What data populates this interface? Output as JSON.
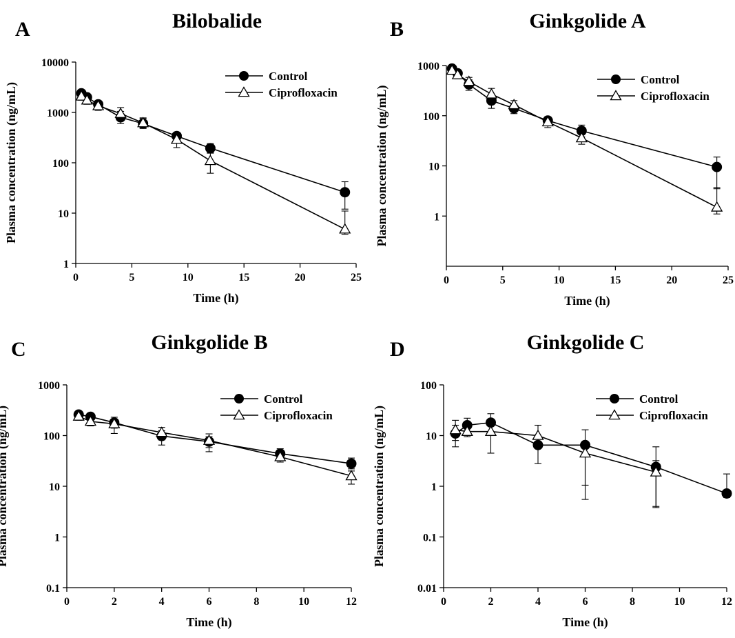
{
  "chart_data": [
    {
      "type": "scatter",
      "panel_label": "A",
      "title": "Bilobalide",
      "xlabel": "Time (h)",
      "ylabel": "Plasma concentration (ng/mL)",
      "xlim": [
        0,
        25
      ],
      "ylim": [
        1,
        10000
      ],
      "yscale": "log",
      "grid": false,
      "legend_position": "top-right",
      "x_ticks": [
        0,
        5,
        10,
        15,
        20,
        25
      ],
      "x_tick_labels": [
        "0",
        "5",
        "10",
        "15",
        "20",
        "25"
      ],
      "y_ticks": [
        1,
        10,
        100,
        1000,
        10000
      ],
      "y_tick_labels": [
        "1",
        "10",
        "100",
        "1000",
        "10000"
      ],
      "series": [
        {
          "name": "Control",
          "marker": "filled-circle",
          "x": [
            0.5,
            1,
            2,
            4,
            6,
            9,
            12,
            24
          ],
          "y": [
            2400,
            2000,
            1450,
            800,
            600,
            340,
            195,
            26
          ],
          "error_upper": [
            2800,
            2300,
            1700,
            1050,
            750,
            400,
            240,
            42
          ],
          "error_lower": [
            2100,
            1700,
            1200,
            600,
            480,
            280,
            155,
            12
          ]
        },
        {
          "name": "Ciprofloxacin",
          "marker": "open-triangle",
          "x": [
            0.5,
            1,
            2,
            4,
            6,
            9,
            12,
            24
          ],
          "y": [
            2100,
            1750,
            1350,
            950,
            620,
            290,
            110,
            4.8
          ],
          "error_upper": [
            2500,
            2100,
            1650,
            1250,
            780,
            360,
            160,
            11
          ],
          "error_lower": [
            1750,
            1450,
            1100,
            720,
            500,
            200,
            62,
            3.8
          ]
        }
      ]
    },
    {
      "type": "scatter",
      "panel_label": "B",
      "title": "Ginkgolide A",
      "xlabel": "Time (h)",
      "ylabel": "Plasma concentration (ng/mL)",
      "xlim": [
        0,
        25
      ],
      "ylim": [
        0.1,
        1000
      ],
      "yscale": "log",
      "grid": false,
      "legend_position": "top-right",
      "x_ticks": [
        0,
        5,
        10,
        15,
        20,
        25
      ],
      "x_tick_labels": [
        "0",
        "5",
        "10",
        "15",
        "20",
        "25"
      ],
      "y_ticks": [
        1,
        10,
        100,
        1000
      ],
      "y_tick_labels": [
        "1",
        "10",
        "100",
        "1000"
      ],
      "series": [
        {
          "name": "Control",
          "marker": "filled-circle",
          "x": [
            0.5,
            1,
            2,
            4,
            6,
            9,
            12,
            24
          ],
          "y": [
            870,
            700,
            420,
            200,
            140,
            80,
            50,
            9.5
          ],
          "error_upper": [
            1000,
            820,
            520,
            260,
            170,
            95,
            65,
            15
          ],
          "error_lower": [
            760,
            600,
            320,
            140,
            110,
            65,
            38,
            3.5
          ]
        },
        {
          "name": "Ciprofloxacin",
          "marker": "open-triangle",
          "x": [
            0.5,
            1,
            2,
            4,
            6,
            9,
            12,
            24
          ],
          "y": [
            800,
            650,
            480,
            270,
            165,
            75,
            36,
            1.5
          ],
          "error_upper": [
            920,
            760,
            580,
            350,
            200,
            90,
            46,
            3.7
          ],
          "error_lower": [
            680,
            540,
            380,
            200,
            130,
            58,
            27,
            1.1
          ]
        }
      ]
    },
    {
      "type": "scatter",
      "panel_label": "C",
      "title": "Ginkgolide B",
      "xlabel": "Time (h)",
      "ylabel": "Plasma concentration (ng/mL)",
      "xlim": [
        0,
        12
      ],
      "ylim": [
        0.1,
        1000
      ],
      "yscale": "log",
      "grid": false,
      "legend_position": "top-right",
      "x_ticks": [
        0,
        2,
        4,
        6,
        8,
        10,
        12
      ],
      "x_tick_labels": [
        "0",
        "2",
        "4",
        "6",
        "8",
        "10",
        "12"
      ],
      "y_ticks": [
        0.1,
        1,
        10,
        100,
        1000
      ],
      "y_tick_labels": [
        "0.1",
        "1",
        "10",
        "100",
        "1000"
      ],
      "series": [
        {
          "name": "Control",
          "marker": "filled-circle",
          "x": [
            0.5,
            1,
            2,
            4,
            6,
            9,
            12
          ],
          "y": [
            260,
            235,
            180,
            98,
            76,
            44,
            28
          ],
          "error_upper": [
            300,
            270,
            230,
            125,
            95,
            55,
            36
          ],
          "error_lower": [
            225,
            205,
            140,
            65,
            58,
            35,
            22
          ]
        },
        {
          "name": "Ciprofloxacin",
          "marker": "open-triangle",
          "x": [
            0.5,
            1,
            2,
            4,
            6,
            9,
            12
          ],
          "y": [
            240,
            190,
            170,
            115,
            80,
            38,
            16
          ],
          "error_upper": [
            280,
            220,
            210,
            145,
            108,
            45,
            20
          ],
          "error_lower": [
            200,
            155,
            110,
            82,
            48,
            30,
            11
          ]
        }
      ]
    },
    {
      "type": "scatter",
      "panel_label": "D",
      "title": "Ginkgolide C",
      "xlabel": "Time (h)",
      "ylabel": "Plasma concentration (ng/mL)",
      "xlim": [
        0,
        12
      ],
      "ylim": [
        0.01,
        100
      ],
      "yscale": "log",
      "grid": false,
      "legend_position": "top-right",
      "x_ticks": [
        0,
        2,
        4,
        6,
        8,
        10,
        12
      ],
      "x_tick_labels": [
        "0",
        "2",
        "4",
        "6",
        "8",
        "10",
        "12"
      ],
      "y_ticks": [
        0.01,
        0.1,
        1,
        10,
        100
      ],
      "y_tick_labels": [
        "0.01",
        "0.1",
        "1",
        "10",
        "100"
      ],
      "series": [
        {
          "name": "Control",
          "marker": "filled-circle",
          "x": [
            0.5,
            1,
            2,
            4,
            6,
            9,
            12
          ],
          "y": [
            11,
            16,
            18,
            6.5,
            6.5,
            2.4,
            0.72
          ],
          "error_upper": [
            16,
            22,
            27,
            10,
            13,
            6,
            1.75
          ],
          "error_lower": [
            6,
            10,
            10,
            2.8,
            1.05,
            0.38,
            0.6
          ]
        },
        {
          "name": "Ciprofloxacin",
          "marker": "open-triangle",
          "x": [
            0.5,
            1,
            2,
            4,
            6,
            9
          ],
          "y": [
            13,
            12,
            12,
            10,
            4.5,
            1.9
          ],
          "error_upper": [
            20,
            15,
            16,
            16,
            7,
            3.2
          ],
          "error_lower": [
            8,
            9.5,
            4.5,
            6,
            0.55,
            0.4
          ]
        }
      ]
    }
  ]
}
